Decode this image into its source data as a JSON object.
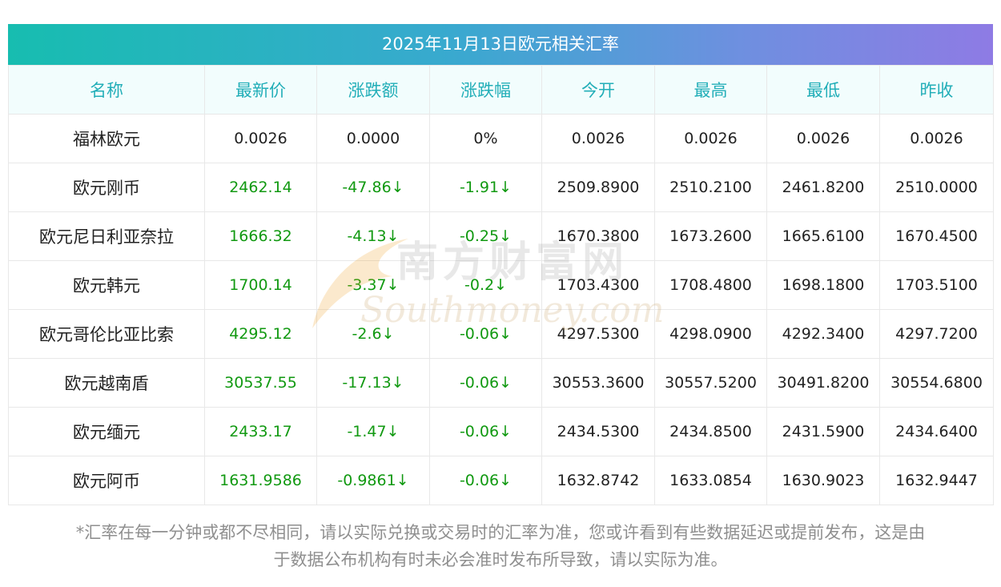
{
  "title": "2025年11月13日欧元相关汇率",
  "columns": [
    "名称",
    "最新价",
    "涨跌额",
    "涨跌幅",
    "今开",
    "最高",
    "最低",
    "昨收"
  ],
  "rows": [
    {
      "name": "福林欧元",
      "latest": "0.0026",
      "change": "0.0000",
      "pct": "0%",
      "open": "0.0026",
      "high": "0.0026",
      "low": "0.0026",
      "prev": "0.0026",
      "direction": "flat"
    },
    {
      "name": "欧元刚币",
      "latest": "2462.14",
      "change": "-47.86↓",
      "pct": "-1.91↓",
      "open": "2509.8900",
      "high": "2510.2100",
      "low": "2461.8200",
      "prev": "2510.0000",
      "direction": "down"
    },
    {
      "name": "欧元尼日利亚奈拉",
      "latest": "1666.32",
      "change": "-4.13↓",
      "pct": "-0.25↓",
      "open": "1670.3800",
      "high": "1673.2600",
      "low": "1665.6100",
      "prev": "1670.4500",
      "direction": "down"
    },
    {
      "name": "欧元韩元",
      "latest": "1700.14",
      "change": "-3.37↓",
      "pct": "-0.2↓",
      "open": "1703.4300",
      "high": "1708.4800",
      "low": "1698.1800",
      "prev": "1703.5100",
      "direction": "down"
    },
    {
      "name": "欧元哥伦比亚比索",
      "latest": "4295.12",
      "change": "-2.6↓",
      "pct": "-0.06↓",
      "open": "4297.5300",
      "high": "4298.0900",
      "low": "4292.3400",
      "prev": "4297.7200",
      "direction": "down"
    },
    {
      "name": "欧元越南盾",
      "latest": "30537.55",
      "change": "-17.13↓",
      "pct": "-0.06↓",
      "open": "30553.3600",
      "high": "30557.5200",
      "low": "30491.8200",
      "prev": "30554.6800",
      "direction": "down"
    },
    {
      "name": "欧元缅元",
      "latest": "2433.17",
      "change": "-1.47↓",
      "pct": "-0.06↓",
      "open": "2434.5300",
      "high": "2434.8500",
      "low": "2431.5900",
      "prev": "2434.6400",
      "direction": "down"
    },
    {
      "name": "欧元阿币",
      "latest": "1631.9586",
      "change": "-0.9861↓",
      "pct": "-0.06↓",
      "open": "1632.8742",
      "high": "1633.0854",
      "low": "1630.9023",
      "prev": "1632.9447",
      "direction": "down"
    }
  ],
  "watermark": {
    "cn": "南方财富网",
    "en": "Southmoney.com"
  },
  "footnote_line1": "*汇率在每一分钟或都不尽相同，请以实际兑换或交易时的汇率为准，您或许看到有些数据延迟或提前发布，这是由",
  "footnote_line2": "于数据公布机构有时未必会准时发布所导致，请以实际为准。",
  "colors": {
    "header_text": "#22aeb8",
    "down": "#119911",
    "gradient_start": "#17bdb0",
    "gradient_end": "#8e7be4"
  }
}
